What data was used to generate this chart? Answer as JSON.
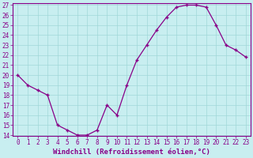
{
  "x": [
    0,
    1,
    2,
    3,
    4,
    5,
    6,
    7,
    8,
    9,
    10,
    11,
    12,
    13,
    14,
    15,
    16,
    17,
    18,
    19,
    20,
    21,
    22,
    23
  ],
  "y": [
    20,
    19,
    18.5,
    18,
    15,
    14.5,
    14,
    14,
    14.5,
    17,
    16,
    19,
    21.5,
    23,
    24.5,
    25.8,
    26.8,
    27,
    27,
    26.8,
    25,
    23,
    22.5,
    21.8
  ],
  "line_color": "#880088",
  "marker": "P",
  "bg_color": "#c8eef0",
  "xlabel": "Windchill (Refroidissement éolien,°C)",
  "ylim_min": 14,
  "ylim_max": 27,
  "xlim_min": -0.5,
  "xlim_max": 23.5,
  "yticks": [
    14,
    15,
    16,
    17,
    18,
    19,
    20,
    21,
    22,
    23,
    24,
    25,
    26,
    27
  ],
  "xticks": [
    0,
    1,
    2,
    3,
    4,
    5,
    6,
    7,
    8,
    9,
    10,
    11,
    12,
    13,
    14,
    15,
    16,
    17,
    18,
    19,
    20,
    21,
    22,
    23
  ],
  "grid_color": "#a0d8d8",
  "spine_color": "#880088",
  "tick_color": "#880088",
  "label_color": "#880088",
  "tick_fontsize": 5.5,
  "xlabel_fontsize": 6.5
}
